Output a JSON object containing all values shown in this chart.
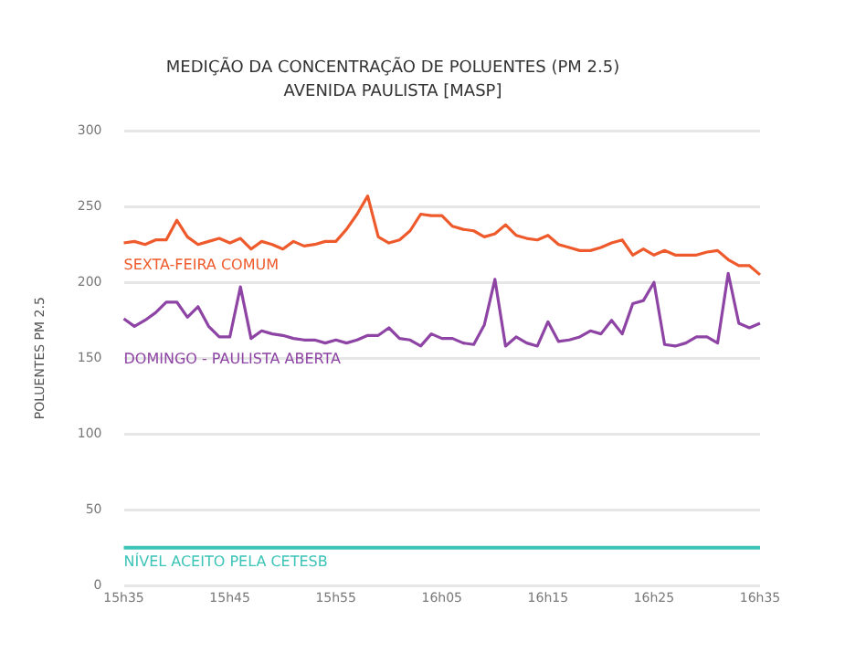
{
  "chart_data": {
    "type": "line",
    "title": "MEDIÇÃO DA CONCENTRAÇÃO DE POLUENTES (PM 2.5)",
    "subtitle": "AVENIDA PAULISTA [MASP]",
    "ylabel": "POLUENTES PM 2.5",
    "categories": [
      "15h35",
      null,
      null,
      null,
      null,
      null,
      null,
      null,
      null,
      null,
      "15h45",
      null,
      null,
      null,
      null,
      null,
      null,
      null,
      null,
      null,
      "15h55",
      null,
      null,
      null,
      null,
      null,
      null,
      null,
      null,
      null,
      "16h05",
      null,
      null,
      null,
      null,
      null,
      null,
      null,
      null,
      null,
      "16h15",
      null,
      null,
      null,
      null,
      null,
      null,
      null,
      null,
      null,
      "16h25",
      null,
      null,
      null,
      null,
      null,
      null,
      null,
      null,
      null,
      "16h35"
    ],
    "series": [
      {
        "name": "SEXTA-FEIRA COMUM",
        "color": "#ee5a2c",
        "values": [
          226,
          227,
          225,
          228,
          228,
          241,
          230,
          225,
          227,
          229,
          226,
          229,
          222,
          227,
          225,
          222,
          227,
          224,
          225,
          227,
          227,
          235,
          245,
          257,
          230,
          226,
          228,
          234,
          245,
          244,
          244,
          237,
          235,
          234,
          230,
          232,
          238,
          231,
          229,
          228,
          231,
          225,
          223,
          221,
          221,
          223,
          226,
          228,
          218,
          222,
          218,
          221,
          218,
          218,
          218,
          220,
          221,
          215,
          211,
          211,
          205
        ]
      },
      {
        "name": "DOMINGO - PAULISTA ABERTA",
        "color": "#8e44a4",
        "values": [
          176,
          171,
          175,
          180,
          187,
          187,
          177,
          184,
          171,
          164,
          164,
          197,
          163,
          168,
          166,
          165,
          163,
          162,
          162,
          160,
          162,
          160,
          162,
          165,
          165,
          170,
          163,
          162,
          158,
          166,
          163,
          163,
          160,
          159,
          172,
          202,
          158,
          164,
          160,
          158,
          174,
          161,
          162,
          164,
          168,
          166,
          175,
          166,
          186,
          188,
          200,
          159,
          158,
          160,
          164,
          164,
          160,
          206,
          173,
          170,
          173
        ]
      }
    ],
    "ref_lines": [
      {
        "axis": "y",
        "value": 25,
        "label": "NÍVEL ACEITO PELA CETESB",
        "color": "#3cc4b8"
      }
    ],
    "ylim": [
      0,
      300
    ],
    "yticks": [
      0,
      50,
      100,
      150,
      200,
      250,
      300
    ],
    "grid": "y",
    "legend": false,
    "marker": "none",
    "line_style": "solid"
  }
}
